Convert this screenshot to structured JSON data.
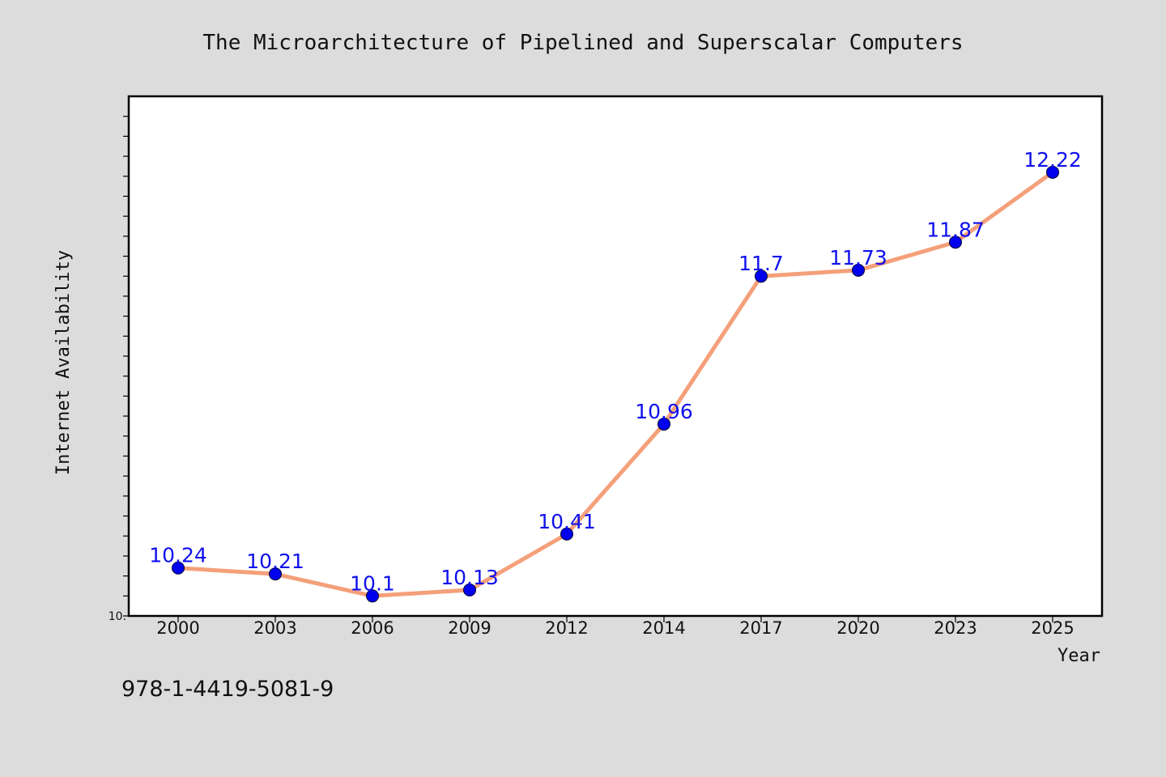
{
  "chart_data": {
    "type": "line",
    "title": "The Microarchitecture of Pipelined and Superscalar Computers",
    "xlabel": "Year",
    "ylabel": "Internet Availability",
    "categories": [
      "2000",
      "2003",
      "2006",
      "2009",
      "2012",
      "2014",
      "2017",
      "2020",
      "2023",
      "2025"
    ],
    "series": [
      {
        "values": [
          10.24,
          10.21,
          10.1,
          10.13,
          10.41,
          10.96,
          11.7,
          11.73,
          11.87,
          12.22
        ],
        "labels": [
          "10.24",
          "10.21",
          "10.1",
          "10.13",
          "10.41",
          "10.96",
          "11.7",
          "11.73",
          "11.87",
          "12.22"
        ]
      }
    ],
    "ylim": [
      10.0,
      12.6
    ],
    "y_tick_label": "10.",
    "grid": false,
    "legend": "none",
    "line_color": "#f4a07a",
    "marker_color": "#0000ee",
    "label_color": "#1010ee"
  },
  "footer": {
    "isbn": "978-1-4419-5081-9"
  }
}
